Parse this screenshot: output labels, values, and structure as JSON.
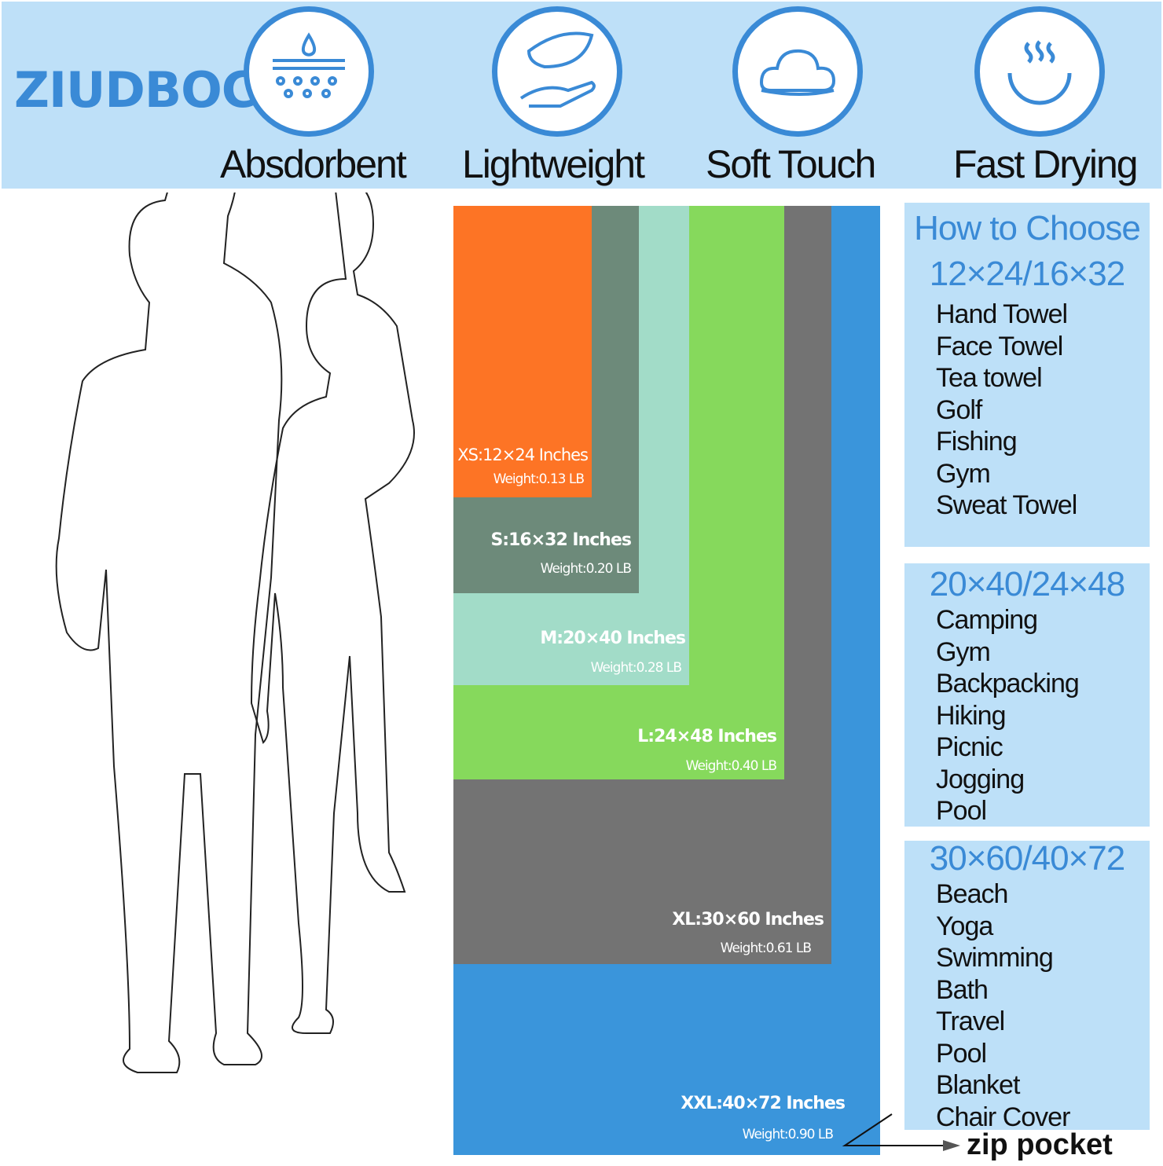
{
  "brand": "ZIUDBOC",
  "features": [
    {
      "label": "Absdorbent",
      "icon": "absorbent-dots-icon"
    },
    {
      "label": "Lightweight",
      "icon": "feather-hand-icon"
    },
    {
      "label": "Soft Touch",
      "icon": "cloud-icon"
    },
    {
      "label": "Fast Drying",
      "icon": "steam-bowl-icon"
    }
  ],
  "sizes": [
    {
      "size": "XS:12×24 Inches",
      "weight": "Weight:0.13 LB",
      "color": "#fd7425"
    },
    {
      "size": "S:16×32 Inches",
      "weight": "Weight:0.20 LB",
      "color": "#6d8a7a"
    },
    {
      "size": "M:20×40 Inches",
      "weight": "Weight:0.28 LB",
      "color": "#a2dcc8"
    },
    {
      "size": "L:24×48 Inches",
      "weight": "Weight:0.40 LB",
      "color": "#86d95c"
    },
    {
      "size": "XL:30×60 Inches",
      "weight": "Weight:0.61 LB",
      "color": "#737373"
    },
    {
      "size": "XXL:40×72 Inches",
      "weight": "Weight:0.90 LB",
      "color": "#3a95db"
    }
  ],
  "guide": {
    "title": "How to Choose",
    "groups": [
      {
        "heading": "12×24/16×32",
        "items": [
          "Hand Towel",
          "Face Towel",
          "Tea towel",
          "Golf",
          "Fishing",
          "Gym",
          "Sweat Towel"
        ]
      },
      {
        "heading": "20×40/24×48",
        "items": [
          "Camping",
          "Gym",
          "Backpacking",
          "Hiking",
          "Picnic",
          "Jogging",
          "Pool"
        ]
      },
      {
        "heading": "30×60/40×72",
        "items": [
          "Beach",
          "Yoga",
          "Swimming",
          "Bath",
          "Travel",
          "Pool",
          "Blanket",
          "Chair Cover"
        ]
      }
    ]
  },
  "zip_label": "zip pocket"
}
